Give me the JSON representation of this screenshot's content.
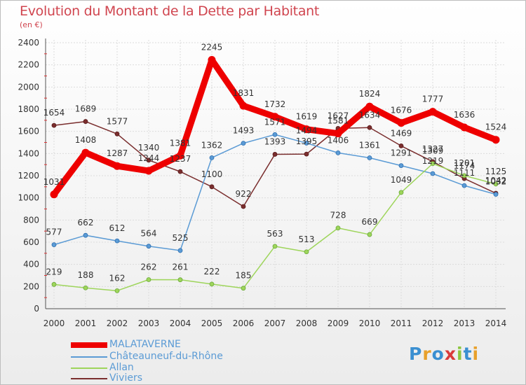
{
  "header": {
    "title": "Evolution du Montant de la Dette par Habitant",
    "subtitle": "(en €)"
  },
  "logo": {
    "text": "Proxiti",
    "colors": [
      "#3a8fd1",
      "#e8a02a",
      "#3a8fd1",
      "#d93a3a",
      "#8cc63f",
      "#3a8fd1",
      "#e8a02a"
    ]
  },
  "chart_data": {
    "type": "line",
    "x": [
      "2000",
      "2001",
      "2002",
      "2003",
      "2004",
      "2005",
      "2006",
      "2007",
      "2008",
      "2009",
      "2010",
      "2011",
      "2012",
      "2013",
      "2014"
    ],
    "ylim": [
      0,
      2400
    ],
    "yticks": [
      "0",
      "200",
      "400",
      "600",
      "800",
      "1000",
      "1200",
      "1400",
      "1600",
      "1800",
      "2000",
      "2200",
      "2400"
    ],
    "grid": true,
    "legend_position": "bottom-left",
    "series": [
      {
        "name": "MALATAVERNE",
        "color": "#ee0000",
        "values": [
          1031,
          1408,
          1287,
          1244,
          1381,
          2245,
          1831,
          1732,
          1619,
          1581,
          1824,
          1676,
          1777,
          1636,
          1524
        ]
      },
      {
        "name": "Châteauneuf-du-Rhône",
        "color": "#5b9bd5",
        "values": [
          577,
          662,
          612,
          564,
          525,
          1362,
          1493,
          1571,
          1494,
          1406,
          1361,
          1291,
          1219,
          1111,
          1032
        ]
      },
      {
        "name": "Allan",
        "color": "#9ed55b",
        "values": [
          219,
          188,
          162,
          262,
          261,
          222,
          185,
          563,
          513,
          728,
          669,
          1049,
          1309,
          1201,
          1125
        ]
      },
      {
        "name": "Viviers",
        "color": "#7a2e2e",
        "values": [
          1654,
          1689,
          1577,
          1340,
          1237,
          1100,
          922,
          1393,
          1395,
          1627,
          1634,
          1469,
          1327,
          1174,
          1042
        ]
      }
    ]
  }
}
